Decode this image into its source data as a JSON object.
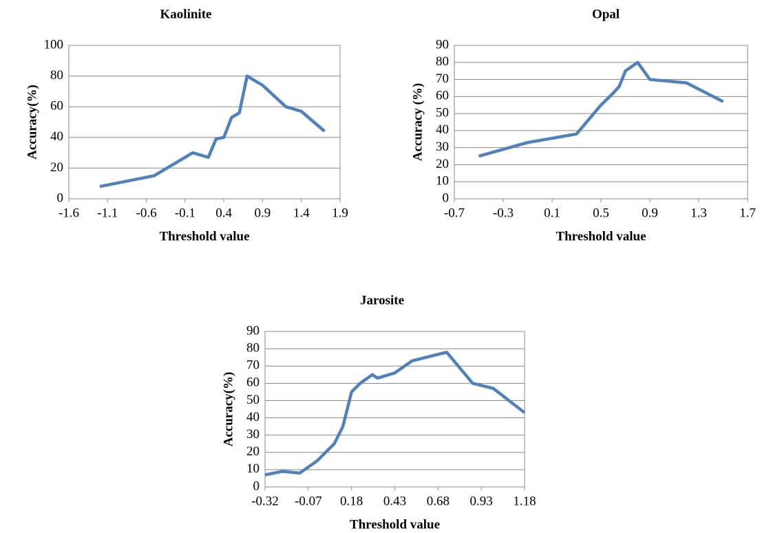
{
  "chart_data": [
    {
      "type": "line",
      "title": "Kaolinite",
      "x_label": "Threshold value",
      "y_label": "Accuracy(%)",
      "x": [
        -1.2,
        -0.5,
        0.0,
        0.2,
        0.3,
        0.4,
        0.5,
        0.6,
        0.7,
        0.9,
        1.2,
        1.4,
        1.7
      ],
      "series": [
        {
          "color": "#4f81bd",
          "values": [
            8,
            15,
            30,
            27,
            39,
            40,
            53,
            56,
            80,
            74,
            60,
            57,
            44
          ]
        }
      ],
      "xlim": [
        -1.6,
        1.9
      ],
      "xticks": [
        -1.6,
        -1.1,
        -0.6,
        -0.1,
        0.4,
        0.9,
        1.4,
        1.9
      ],
      "ylim": [
        0,
        100
      ],
      "yticks": [
        0,
        20,
        40,
        60,
        80,
        100
      ],
      "grid": true
    },
    {
      "type": "line",
      "title": "Opal",
      "x_label": "Threshold value",
      "y_label": "Accuracy (%)",
      "x": [
        -0.5,
        -0.1,
        0.3,
        0.5,
        0.6,
        0.65,
        0.7,
        0.8,
        0.9,
        1.2,
        1.5
      ],
      "series": [
        {
          "color": "#4f81bd",
          "values": [
            25,
            33,
            38,
            55,
            62,
            66,
            75,
            80,
            70,
            68,
            57
          ]
        }
      ],
      "xlim": [
        -0.7,
        1.7
      ],
      "xticks": [
        -0.7,
        -0.3,
        0.1,
        0.5,
        0.9,
        1.3,
        1.7
      ],
      "ylim": [
        0,
        90
      ],
      "yticks": [
        0,
        10,
        20,
        30,
        40,
        50,
        60,
        70,
        80,
        90
      ],
      "grid": true
    },
    {
      "type": "line",
      "title": "Jarosite",
      "x_label": "Threshold value",
      "y_label": "Accuracy(%)",
      "x": [
        -0.32,
        -0.22,
        -0.12,
        -0.02,
        0.08,
        0.13,
        0.18,
        0.23,
        0.3,
        0.33,
        0.43,
        0.53,
        0.73,
        0.88,
        1.0,
        1.18
      ],
      "series": [
        {
          "color": "#4f81bd",
          "values": [
            7,
            9,
            8,
            15,
            25,
            35,
            55,
            60,
            65,
            63,
            66,
            73,
            78,
            60,
            57,
            43
          ]
        }
      ],
      "xlim": [
        -0.32,
        1.18
      ],
      "xticks": [
        -0.32,
        -0.07,
        0.18,
        0.43,
        0.68,
        0.93,
        1.18
      ],
      "ylim": [
        0,
        90
      ],
      "yticks": [
        0,
        10,
        20,
        30,
        40,
        50,
        60,
        70,
        80,
        90
      ],
      "grid": true
    }
  ]
}
